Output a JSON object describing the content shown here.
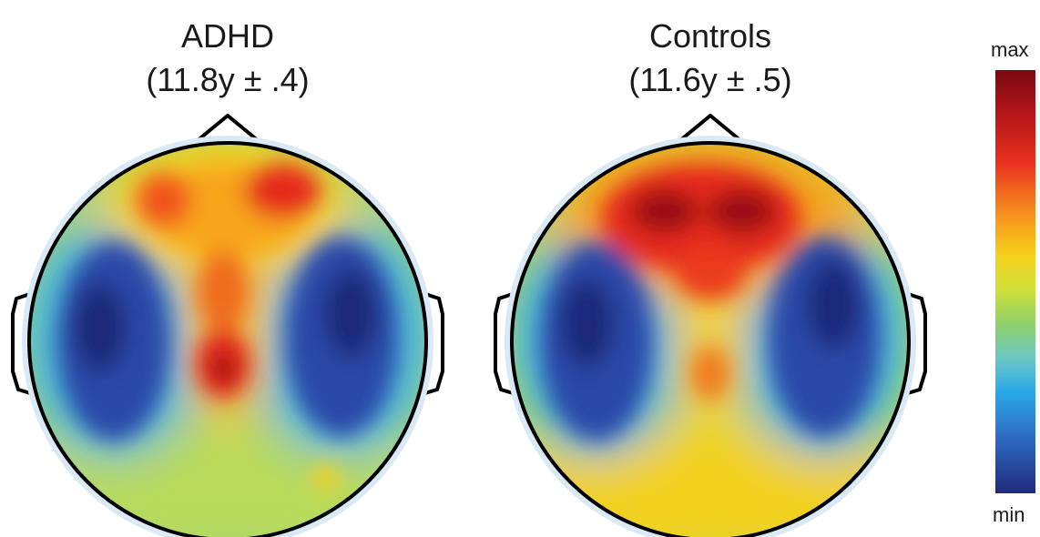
{
  "panels": [
    {
      "title": "ADHD",
      "subtitle": "(11.8y ± .4)"
    },
    {
      "title": "Controls",
      "subtitle": "(11.6y ± .5)"
    }
  ],
  "colorbar": {
    "max_label": "max",
    "min_label": "min",
    "colors": [
      "#7a0a12",
      "#c81e1e",
      "#ee3a22",
      "#f88a1f",
      "#f6d11c",
      "#cfe03a",
      "#8fd06a",
      "#6cc8c4",
      "#2aa9e8",
      "#2f73c8",
      "#2c4aa8",
      "#1f2c7c"
    ]
  },
  "colors": {
    "outline": "#000000",
    "halo": "#dbe9f4",
    "text": "#1a1a1a"
  }
}
